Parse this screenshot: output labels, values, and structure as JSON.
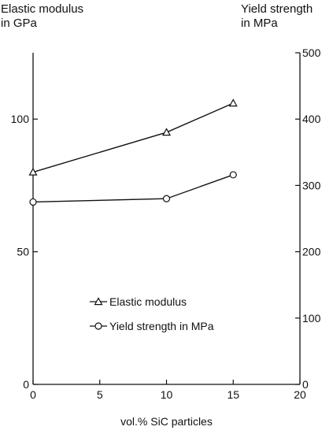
{
  "chart_data": {
    "type": "line",
    "left_axis_label": [
      "Elastic modulus",
      "in GPa"
    ],
    "right_axis_label": [
      "Yield strength",
      "in MPa"
    ],
    "xlabel": "vol.% SiC particles",
    "xlim": [
      0,
      20
    ],
    "x_ticks": [
      0,
      5,
      10,
      15,
      20
    ],
    "ylim_left": [
      0,
      125
    ],
    "y_ticks_left": [
      0,
      50,
      100
    ],
    "ylim_right": [
      0,
      500
    ],
    "y_ticks_right": [
      0,
      100,
      200,
      300,
      400,
      500
    ],
    "grid": false,
    "legend_position": "center-left",
    "series": [
      {
        "name": "Elastic modulus",
        "axis": "left",
        "marker": "triangle",
        "x": [
          0,
          10,
          15
        ],
        "values": [
          80,
          95,
          106
        ]
      },
      {
        "name": "Yield strength in MPa",
        "axis": "right",
        "marker": "circle",
        "x": [
          0,
          10,
          15
        ],
        "values": [
          275,
          280,
          316
        ]
      }
    ]
  }
}
